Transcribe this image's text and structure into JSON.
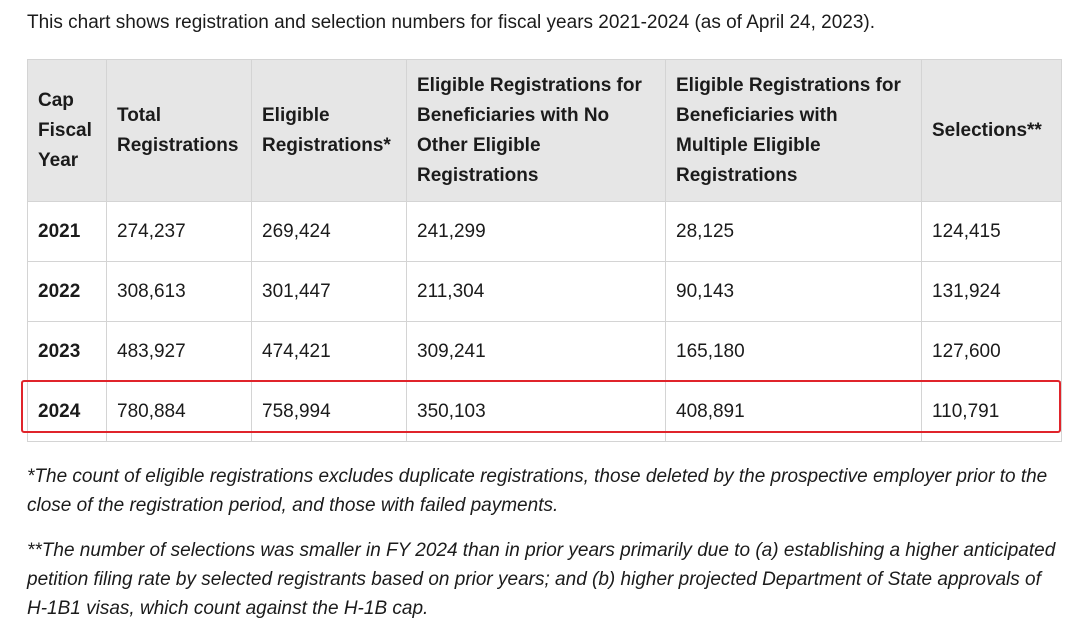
{
  "intro": "This chart shows registration and selection numbers for fiscal years 2021-2024 (as of April 24, 2023).",
  "table": {
    "headers": [
      "Cap Fiscal Year",
      "Total Registrations",
      "Eligible Registrations*",
      "Eligible Registrations for Beneficiaries with No Other Eligible Registrations",
      "Eligible Registrations for Beneficiaries with Multiple Eligible Registrations",
      "Selections**"
    ],
    "rows": [
      [
        "2021",
        "274,237",
        "269,424",
        "241,299",
        "28,125",
        "124,415"
      ],
      [
        "2022",
        "308,613",
        "301,447",
        "211,304",
        "90,143",
        "131,924"
      ],
      [
        "2023",
        "483,927",
        "474,421",
        "309,241",
        "165,180",
        "127,600"
      ],
      [
        "2024",
        "780,884",
        "758,994",
        "350,103",
        "408,891",
        "110,791"
      ]
    ],
    "highlight_color": "#e0242b",
    "highlighted_year": "2024"
  },
  "notes": [
    "*The count of eligible registrations excludes duplicate registrations, those deleted by the prospective employer prior to the close of the registration period, and those with failed payments.",
    "**The number of selections was smaller in FY 2024 than in prior years primarily due to (a) establishing a higher anticipated petition filing rate by selected registrants based on prior years; and (b) higher projected Department of State approvals of H-1B1 visas, which count against the H-1B cap."
  ]
}
